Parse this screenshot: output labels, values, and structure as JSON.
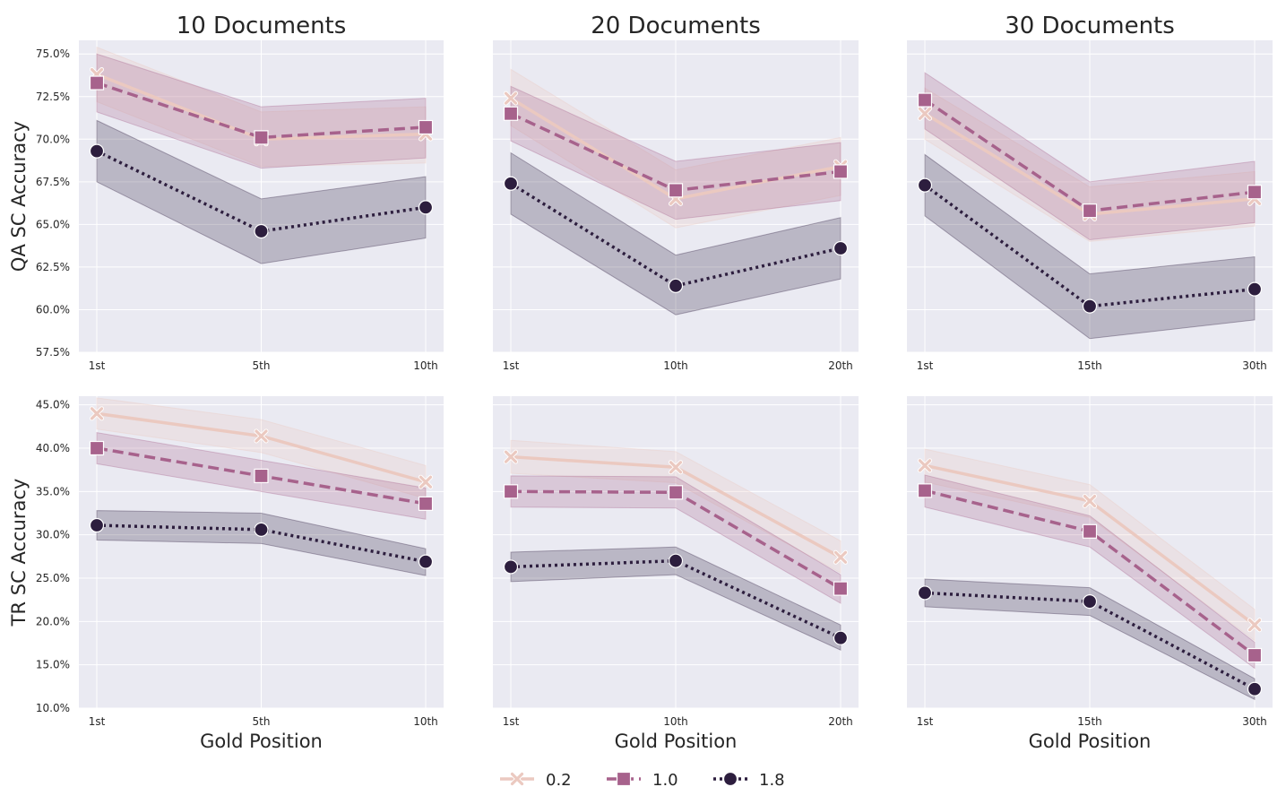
{
  "legend": [
    {
      "label": "0.2",
      "color": "#ebc9c0",
      "marker": "x",
      "dash": "solid"
    },
    {
      "label": "1.0",
      "color": "#a7628c",
      "marker": "square",
      "dash": "dashed"
    },
    {
      "label": "1.8",
      "color": "#2d1e3e",
      "marker": "circle",
      "dash": "dotted"
    }
  ],
  "chart_data": [
    {
      "type": "line",
      "title": "10 Documents",
      "xlabel": "",
      "ylabel": "QA SC Accuracy",
      "categories": [
        "1st",
        "5th",
        "10th"
      ],
      "ylim": [
        57.5,
        75.8
      ],
      "yticks": [
        "57.5%",
        "60.0%",
        "62.5%",
        "65.0%",
        "67.5%",
        "70.0%",
        "72.5%",
        "75.0%"
      ],
      "series": [
        {
          "name": "0.2",
          "values": [
            73.8,
            70.0,
            70.3
          ],
          "lower": [
            72.2,
            68.4,
            68.6
          ],
          "upper": [
            75.4,
            71.6,
            71.9
          ]
        },
        {
          "name": "1.0",
          "values": [
            73.3,
            70.1,
            70.7
          ],
          "lower": [
            71.6,
            68.3,
            68.9
          ],
          "upper": [
            75.0,
            71.9,
            72.4
          ]
        },
        {
          "name": "1.8",
          "values": [
            69.3,
            64.6,
            66.0
          ],
          "lower": [
            67.5,
            62.7,
            64.2
          ],
          "upper": [
            71.1,
            66.5,
            67.8
          ]
        }
      ]
    },
    {
      "type": "line",
      "title": "20 Documents",
      "xlabel": "",
      "ylabel": "",
      "categories": [
        "1st",
        "10th",
        "20th"
      ],
      "ylim": [
        57.5,
        75.8
      ],
      "yticks": [],
      "series": [
        {
          "name": "0.2",
          "values": [
            72.4,
            66.5,
            68.4
          ],
          "lower": [
            70.8,
            64.8,
            66.7
          ],
          "upper": [
            74.1,
            68.2,
            70.1
          ]
        },
        {
          "name": "1.0",
          "values": [
            71.5,
            67.0,
            68.1
          ],
          "lower": [
            69.9,
            65.3,
            66.4
          ],
          "upper": [
            73.1,
            68.7,
            69.8
          ]
        },
        {
          "name": "1.8",
          "values": [
            67.4,
            61.4,
            63.6
          ],
          "lower": [
            65.6,
            59.7,
            61.8
          ],
          "upper": [
            69.2,
            63.2,
            65.4
          ]
        }
      ]
    },
    {
      "type": "line",
      "title": "30 Documents",
      "xlabel": "",
      "ylabel": "",
      "categories": [
        "1st",
        "15th",
        "30th"
      ],
      "ylim": [
        57.5,
        75.8
      ],
      "yticks": [],
      "series": [
        {
          "name": "0.2",
          "values": [
            71.5,
            65.6,
            66.5
          ],
          "lower": [
            70.0,
            64.0,
            64.9
          ],
          "upper": [
            73.0,
            67.2,
            68.1
          ]
        },
        {
          "name": "1.0",
          "values": [
            72.3,
            65.8,
            66.9
          ],
          "lower": [
            70.6,
            64.1,
            65.1
          ],
          "upper": [
            73.9,
            67.5,
            68.7
          ]
        },
        {
          "name": "1.8",
          "values": [
            67.3,
            60.2,
            61.2
          ],
          "lower": [
            65.5,
            58.3,
            59.4
          ],
          "upper": [
            69.1,
            62.1,
            63.1
          ]
        }
      ]
    },
    {
      "type": "line",
      "title": "",
      "xlabel": "Gold Position",
      "ylabel": "TR SC Accuracy",
      "categories": [
        "1st",
        "5th",
        "10th"
      ],
      "ylim": [
        10.0,
        46.0
      ],
      "yticks": [
        "10.0%",
        "15.0%",
        "20.0%",
        "25.0%",
        "30.0%",
        "35.0%",
        "40.0%",
        "45.0%"
      ],
      "series": [
        {
          "name": "0.2",
          "values": [
            44.0,
            41.4,
            36.1
          ],
          "lower": [
            42.2,
            39.5,
            34.2
          ],
          "upper": [
            45.8,
            43.3,
            38.0
          ]
        },
        {
          "name": "1.0",
          "values": [
            40.0,
            36.8,
            33.6
          ],
          "lower": [
            38.2,
            35.0,
            31.8
          ],
          "upper": [
            41.8,
            38.6,
            35.4
          ]
        },
        {
          "name": "1.8",
          "values": [
            31.1,
            30.6,
            26.9
          ],
          "lower": [
            29.4,
            29.0,
            25.3
          ],
          "upper": [
            32.8,
            32.5,
            28.4
          ]
        }
      ]
    },
    {
      "type": "line",
      "title": "",
      "xlabel": "Gold Position",
      "ylabel": "",
      "categories": [
        "1st",
        "10th",
        "20th"
      ],
      "ylim": [
        10.0,
        46.0
      ],
      "yticks": [],
      "series": [
        {
          "name": "0.2",
          "values": [
            39.0,
            37.8,
            27.4
          ],
          "lower": [
            37.1,
            36.0,
            25.6
          ],
          "upper": [
            40.9,
            39.6,
            29.3
          ]
        },
        {
          "name": "1.0",
          "values": [
            35.0,
            34.9,
            23.8
          ],
          "lower": [
            33.2,
            33.1,
            22.1
          ],
          "upper": [
            36.8,
            36.7,
            25.4
          ]
        },
        {
          "name": "1.8",
          "values": [
            26.3,
            27.0,
            18.1
          ],
          "lower": [
            24.6,
            25.4,
            16.7
          ],
          "upper": [
            28.0,
            28.6,
            19.6
          ]
        }
      ]
    },
    {
      "type": "line",
      "title": "",
      "xlabel": "Gold Position",
      "ylabel": "",
      "categories": [
        "1st",
        "15th",
        "30th"
      ],
      "ylim": [
        10.0,
        46.0
      ],
      "yticks": [],
      "series": [
        {
          "name": "0.2",
          "values": [
            38.0,
            33.9,
            19.6
          ],
          "lower": [
            36.1,
            32.0,
            17.8
          ],
          "upper": [
            39.9,
            35.8,
            21.4
          ]
        },
        {
          "name": "1.0",
          "values": [
            35.1,
            30.4,
            16.1
          ],
          "lower": [
            33.2,
            28.6,
            14.6
          ],
          "upper": [
            36.9,
            32.2,
            17.6
          ]
        },
        {
          "name": "1.8",
          "values": [
            23.3,
            22.3,
            12.2
          ],
          "lower": [
            21.7,
            20.7,
            11.0
          ],
          "upper": [
            24.9,
            23.9,
            13.4
          ]
        }
      ]
    }
  ]
}
